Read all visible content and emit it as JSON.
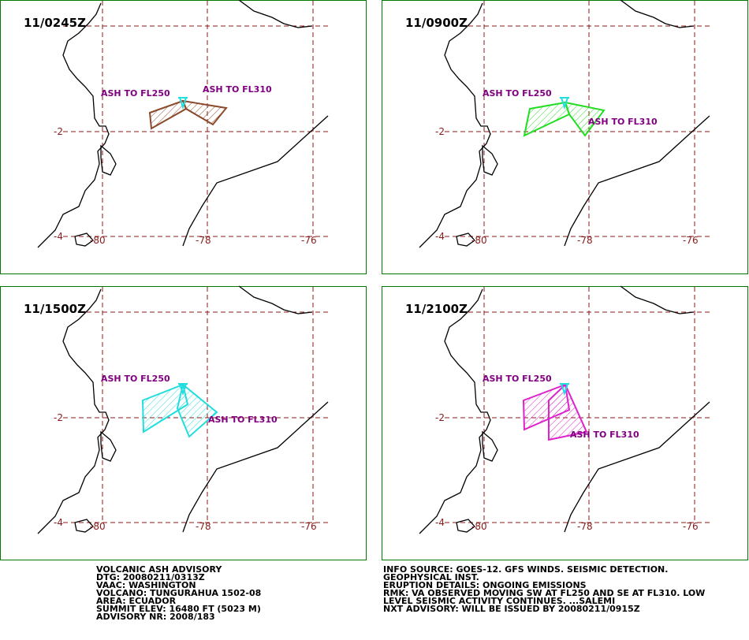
{
  "panels": [
    {
      "time": "11/0245Z",
      "color": "#8b4a2b",
      "labels": [
        "ASH TO FL250",
        "ASH TO FL310"
      ]
    },
    {
      "time": "11/0900Z",
      "color": "#22dd22",
      "labels": [
        "ASH TO FL250",
        "ASH TO FL310"
      ]
    },
    {
      "time": "11/1500Z",
      "color": "#22dddd",
      "labels": [
        "ASH TO FL250",
        "ASH TO FL310"
      ]
    },
    {
      "time": "11/2100Z",
      "color": "#dd22cc",
      "labels": [
        "ASH TO FL250",
        "ASH TO FL310"
      ]
    }
  ],
  "grid": {
    "lat": [
      "-2",
      "-4"
    ],
    "lon": [
      "-80",
      "-78",
      "-76"
    ]
  },
  "advisory_left": [
    "VOLCANIC ASH ADVISORY",
    "DTG: 20080211/0313Z",
    "VAAC: WASHINGTON",
    "VOLCANO: TUNGURAHUA 1502-08",
    "AREA: ECUADOR",
    "SUMMIT ELEV: 16480 FT (5023 M)",
    "ADVISORY NR: 2008/183"
  ],
  "advisory_right": [
    "INFO SOURCE: GOES-12. GFS WINDS. SEISMIC DETECTION.",
    "GEOPHYSICAL INST.",
    "ERUPTION DETAILS: ONGOING EMISSIONS",
    "RMK: VA OBSERVED MOVING SW AT FL250 AND SE AT FL310. LOW",
    "LEVEL SEISMIC ACTIVITY CONTINUES. ...SALEMI",
    "NXT ADVISORY: WILL BE ISSUED BY 20080211/0915Z"
  ]
}
